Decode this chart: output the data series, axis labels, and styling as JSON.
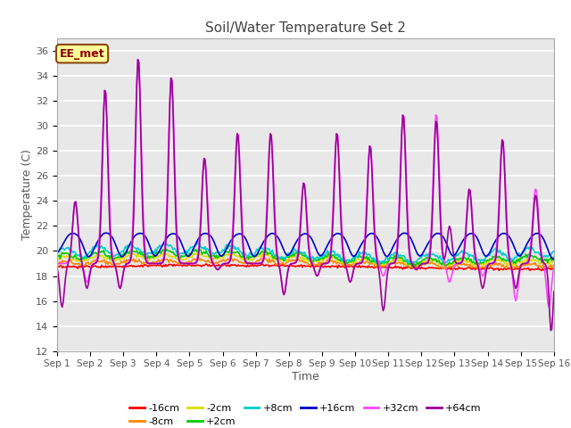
{
  "title": "Soil/Water Temperature Set 2",
  "xlabel": "Time",
  "ylabel": "Temperature (C)",
  "ylim": [
    12,
    37
  ],
  "yticks": [
    12,
    14,
    16,
    18,
    20,
    22,
    24,
    26,
    28,
    30,
    32,
    34,
    36
  ],
  "bg_color": "#e8e8e8",
  "plot_bg_color": "#e8e8e8",
  "annotation_text": "EE_met",
  "annotation_bg": "#ffff99",
  "annotation_border": "#8B4513",
  "series_colors": {
    "-16cm": "#ff0000",
    "-8cm": "#ff8800",
    "-2cm": "#dddd00",
    "+2cm": "#00cc00",
    "+8cm": "#00cccc",
    "+16cm": "#0000cc",
    "+32cm": "#ff44ff",
    "+64cm": "#990099"
  },
  "legend_row1": [
    "-16cm",
    "-8cm",
    "-2cm",
    "+2cm",
    "+8cm",
    "+16cm"
  ],
  "legend_row2": [
    "+32cm",
    "+64cm"
  ],
  "x_tick_labels": [
    "Sep 1",
    "Sep 2",
    "Sep 3",
    "Sep 4",
    "Sep 5",
    "Sep 6",
    "Sep 7",
    "Sep 8",
    "Sep 9",
    "Sep 10",
    "Sep 11",
    "Sep 12",
    "Sep 13",
    "Sep 14",
    "Sep 15",
    "Sep 16"
  ]
}
